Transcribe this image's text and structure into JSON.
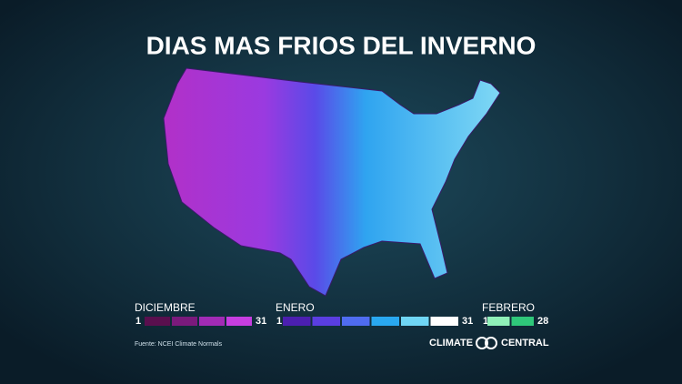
{
  "title": "DIAS MAS FRIOS DEL INVERNO",
  "legend": [
    {
      "name": "DICIEMBRE",
      "start": 1,
      "end": 31,
      "colors": [
        "#5a0f4e",
        "#7a1a7c",
        "#a12bb5",
        "#c63ee0"
      ]
    },
    {
      "name": "ENERO",
      "start": 1,
      "end": 31,
      "colors": [
        "#4b1fb0",
        "#5a3ee0",
        "#4f6cf0",
        "#29a8f0",
        "#6fd6f5",
        "#ffffff"
      ]
    },
    {
      "name": "FEBRERO",
      "start": 1,
      "end": 28,
      "colors": [
        "#8ff0b8",
        "#2fc77a"
      ]
    }
  ],
  "source": "Fuente: NCEI Climate Normals",
  "logo": {
    "left": "CLIMATE",
    "right": "CENTRAL"
  }
}
